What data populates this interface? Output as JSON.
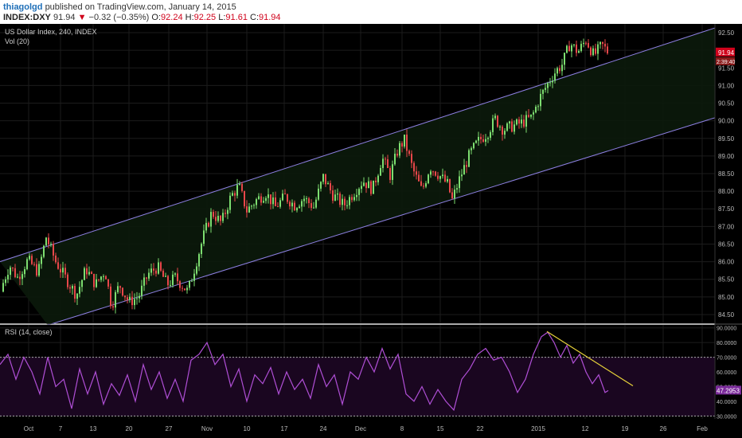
{
  "header": {
    "author": "thiagolgd",
    "published": "published on TradingView.com, January 14, 2015",
    "symbol": "INDEX:DXY",
    "last": "91.94",
    "arrow": "▼",
    "change": "−0.32 (−0.35%)",
    "o_label": "O:",
    "o_value": "92.24",
    "h_label": "H:",
    "h_value": "92.25",
    "l_label": "L:",
    "l_value": "91.61",
    "c_label": "C:",
    "c_value": "91.94"
  },
  "colors": {
    "background": "#000000",
    "grid": "#1c1c1c",
    "up_candle": "#7dde70",
    "down_candle": "#e8474a",
    "channel": "#8c7fe0",
    "channel_fill": "#0b1a0b",
    "rsi_line": "#b04fd6",
    "rsi_fill": "#1a0620",
    "trendline": "#e8d33a"
  },
  "chart_data": [
    {
      "type": "candlestick",
      "title": "US Dollar Index, 240, INDEX",
      "subtitle": "Vol (20)",
      "ylim": [
        84.25,
        92.75
      ],
      "y_ticks": [
        "84.50",
        "85.00",
        "85.50",
        "86.00",
        "86.50",
        "87.00",
        "87.50",
        "88.00",
        "88.50",
        "89.00",
        "89.50",
        "90.00",
        "90.50",
        "91.00",
        "91.50",
        "92.00",
        "92.50"
      ],
      "x_ticks": [
        "Oct",
        "7",
        "13",
        "20",
        "27",
        "Nov",
        "10",
        "17",
        "24",
        "Dec",
        "8",
        "15",
        "22",
        "2015",
        "12",
        "19",
        "26",
        "Feb"
      ],
      "last_price_label": "91.94",
      "countdown_label": "2:39:40",
      "close_path": [
        [
          0,
          85.15
        ],
        [
          12,
          85.9
        ],
        [
          22,
          85.55
        ],
        [
          35,
          86.05
        ],
        [
          48,
          85.7
        ],
        [
          58,
          86.7
        ],
        [
          70,
          86.0
        ],
        [
          82,
          85.55
        ],
        [
          96,
          85.05
        ],
        [
          108,
          85.8
        ],
        [
          120,
          85.35
        ],
        [
          132,
          85.75
        ],
        [
          140,
          84.75
        ],
        [
          150,
          85.35
        ],
        [
          162,
          84.85
        ],
        [
          174,
          85.0
        ],
        [
          186,
          85.65
        ],
        [
          198,
          85.85
        ],
        [
          210,
          85.35
        ],
        [
          220,
          85.55
        ],
        [
          236,
          85.15
        ],
        [
          246,
          85.95
        ],
        [
          256,
          86.75
        ],
        [
          266,
          87.4
        ],
        [
          278,
          87.1
        ],
        [
          290,
          87.85
        ],
        [
          300,
          88.15
        ],
        [
          310,
          87.45
        ],
        [
          322,
          87.75
        ],
        [
          334,
          87.95
        ],
        [
          346,
          87.55
        ],
        [
          358,
          87.85
        ],
        [
          370,
          87.6
        ],
        [
          382,
          87.8
        ],
        [
          394,
          87.55
        ],
        [
          406,
          88.4
        ],
        [
          418,
          87.9
        ],
        [
          432,
          87.6
        ],
        [
          444,
          87.95
        ],
        [
          456,
          88.3
        ],
        [
          468,
          88.05
        ],
        [
          480,
          88.95
        ],
        [
          490,
          88.45
        ],
        [
          500,
          89.2
        ],
        [
          508,
          89.45
        ],
        [
          518,
          88.65
        ],
        [
          530,
          88.0
        ],
        [
          540,
          88.7
        ],
        [
          552,
          88.45
        ],
        [
          562,
          88.2
        ],
        [
          568,
          87.75
        ],
        [
          578,
          88.4
        ],
        [
          590,
          89.05
        ],
        [
          600,
          89.4
        ],
        [
          612,
          89.65
        ],
        [
          622,
          90.05
        ],
        [
          632,
          89.75
        ],
        [
          644,
          89.85
        ],
        [
          656,
          89.95
        ],
        [
          668,
          90.1
        ],
        [
          678,
          90.65
        ],
        [
          688,
          91.05
        ],
        [
          696,
          91.35
        ],
        [
          706,
          91.6
        ],
        [
          716,
          92.2
        ],
        [
          726,
          91.95
        ],
        [
          736,
          92.3
        ],
        [
          746,
          91.85
        ],
        [
          756,
          92.15
        ],
        [
          764,
          91.94
        ]
      ],
      "channel": {
        "upper": [
          [
            0,
            86.0
          ],
          [
            900,
            92.65
          ]
        ],
        "lower": [
          [
            60,
            84.2
          ],
          [
            900,
            90.1
          ]
        ]
      }
    },
    {
      "type": "line",
      "title": "RSI (14, close)",
      "ylim": [
        28,
        92
      ],
      "y_ticks": [
        "30.0000",
        "40.0000",
        "50.0000",
        "60.0000",
        "70.0000",
        "80.0000",
        "90.0000"
      ],
      "last_value_label": "47.2953",
      "bands": [
        30,
        70
      ],
      "trendline": [
        [
          687,
          87.5
        ],
        [
          795,
          50.5
        ]
      ],
      "rsi_path": [
        [
          0,
          65
        ],
        [
          10,
          72
        ],
        [
          20,
          55
        ],
        [
          30,
          70
        ],
        [
          40,
          60
        ],
        [
          50,
          45
        ],
        [
          60,
          70
        ],
        [
          70,
          50
        ],
        [
          80,
          55
        ],
        [
          90,
          35
        ],
        [
          100,
          62
        ],
        [
          110,
          45
        ],
        [
          120,
          60
        ],
        [
          130,
          38
        ],
        [
          140,
          52
        ],
        [
          150,
          44
        ],
        [
          160,
          58
        ],
        [
          170,
          40
        ],
        [
          180,
          65
        ],
        [
          190,
          48
        ],
        [
          200,
          60
        ],
        [
          210,
          42
        ],
        [
          220,
          55
        ],
        [
          230,
          40
        ],
        [
          240,
          68
        ],
        [
          250,
          72
        ],
        [
          260,
          80
        ],
        [
          270,
          65
        ],
        [
          280,
          72
        ],
        [
          290,
          50
        ],
        [
          300,
          62
        ],
        [
          310,
          40
        ],
        [
          320,
          58
        ],
        [
          330,
          52
        ],
        [
          340,
          63
        ],
        [
          350,
          45
        ],
        [
          360,
          60
        ],
        [
          370,
          48
        ],
        [
          380,
          55
        ],
        [
          390,
          42
        ],
        [
          400,
          65
        ],
        [
          410,
          50
        ],
        [
          420,
          58
        ],
        [
          430,
          38
        ],
        [
          440,
          60
        ],
        [
          450,
          55
        ],
        [
          460,
          70
        ],
        [
          470,
          60
        ],
        [
          480,
          76
        ],
        [
          490,
          62
        ],
        [
          500,
          72
        ],
        [
          510,
          45
        ],
        [
          520,
          40
        ],
        [
          530,
          50
        ],
        [
          540,
          38
        ],
        [
          550,
          48
        ],
        [
          560,
          40
        ],
        [
          570,
          34
        ],
        [
          580,
          55
        ],
        [
          590,
          62
        ],
        [
          600,
          72
        ],
        [
          610,
          76
        ],
        [
          620,
          68
        ],
        [
          630,
          70
        ],
        [
          640,
          60
        ],
        [
          650,
          46
        ],
        [
          660,
          55
        ],
        [
          670,
          72
        ],
        [
          680,
          84
        ],
        [
          688,
          87
        ],
        [
          696,
          80
        ],
        [
          704,
          70
        ],
        [
          712,
          78
        ],
        [
          720,
          66
        ],
        [
          728,
          72
        ],
        [
          736,
          60
        ],
        [
          744,
          52
        ],
        [
          752,
          58
        ],
        [
          760,
          46
        ],
        [
          764,
          47.3
        ]
      ]
    }
  ]
}
